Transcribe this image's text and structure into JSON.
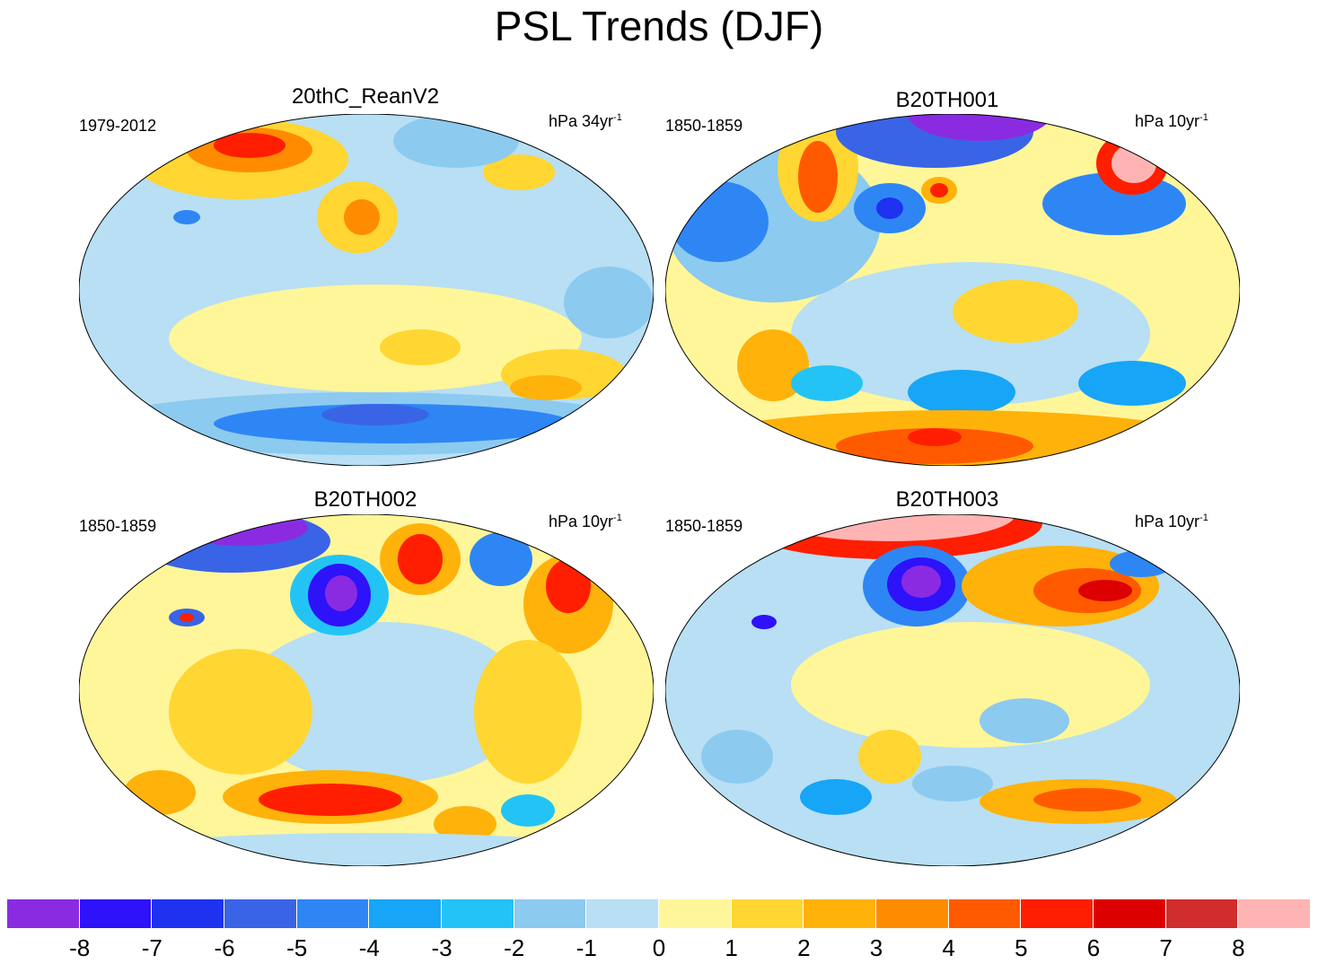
{
  "title": "PSL Trends (DJF)",
  "panels": [
    {
      "name": "20thC_ReanV2",
      "period": "1979-2012",
      "units": "hPa 34yr",
      "units_exp": "-1"
    },
    {
      "name": "B20TH001",
      "period": "1850-1859",
      "units": "hPa 10yr",
      "units_exp": "-1"
    },
    {
      "name": "B20TH002",
      "period": "1850-1859",
      "units": "hPa 10yr",
      "units_exp": "-1"
    },
    {
      "name": "B20TH003",
      "period": "1850-1859",
      "units": "hPa 10yr",
      "units_exp": "-1"
    }
  ],
  "colorbar": {
    "colors": [
      "#8a2be2",
      "#2d12fa",
      "#1e32f0",
      "#3a64e6",
      "#2e86f5",
      "#17a5f7",
      "#23c4f5",
      "#8ccaf0",
      "#b8dff3",
      "#fff699",
      "#ffd632",
      "#ffb20a",
      "#ff8c00",
      "#ff5a00",
      "#ff1e00",
      "#dc0000",
      "#d22d2d",
      "#ffb4b4"
    ],
    "labels": [
      "-8",
      "-7",
      "-6",
      "-5",
      "-4",
      "-3",
      "-2",
      "-1",
      "0",
      "1",
      "2",
      "3",
      "4",
      "5",
      "6",
      "7",
      "8"
    ]
  }
}
